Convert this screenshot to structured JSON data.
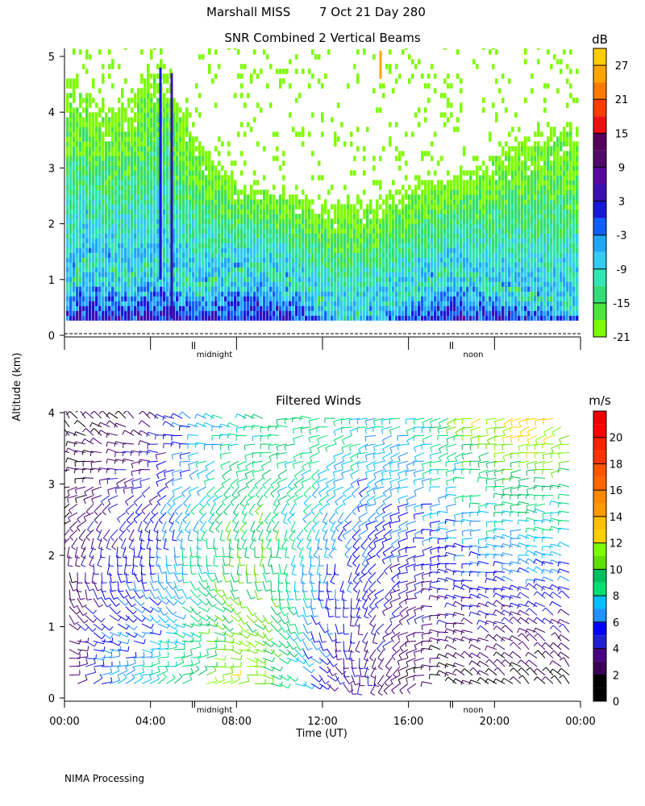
{
  "header": {
    "station": "Marshall MISS",
    "date": "7 Oct 21 Day 280"
  },
  "axes": {
    "ylabel": "Altitude (km)",
    "xlabel": "Time (UT)",
    "time_ticks": [
      "00:00",
      "04:00",
      "08:00",
      "12:00",
      "16:00",
      "20:00",
      "00:00"
    ],
    "midnight_label": "midnight",
    "noon_label": "noon"
  },
  "footer": {
    "processing": "NIMA Processing"
  },
  "chart_data": [
    {
      "type": "heatmap",
      "title": "SNR Combined 2 Vertical Beams",
      "xlabel": "Time (UT)",
      "ylabel": "Altitude (km)",
      "xlim": [
        0,
        24
      ],
      "ylim": [
        0,
        5.2
      ],
      "yticks": [
        0,
        1,
        2,
        3,
        4,
        5
      ],
      "colorbar": {
        "unit": "dB",
        "ticks": [
          -21,
          -15,
          -9,
          -3,
          3,
          9,
          15,
          21,
          27
        ],
        "levels": [
          -21,
          -18,
          -15,
          -12,
          -9,
          -6,
          -3,
          0,
          3,
          6,
          9,
          12,
          15,
          18,
          21,
          24,
          27,
          30
        ],
        "colors": [
          "#7cfc00",
          "#4be53d",
          "#33dd77",
          "#33e5b3",
          "#33ccf0",
          "#1fa7f5",
          "#1060f5",
          "#1818d8",
          "#3a10b0",
          "#5a0aa0",
          "#520a6a",
          "#55005a",
          "#ee1010",
          "#ff3c00",
          "#ff7a00",
          "#ffa500",
          "#ffcc00"
        ]
      },
      "profile": {
        "time_hours": [
          0.2,
          1,
          2,
          3,
          4,
          4.5,
          5,
          6,
          7,
          8,
          9,
          10,
          11,
          12,
          13,
          14,
          15,
          16,
          17,
          18,
          19,
          20,
          21,
          22,
          23,
          23.8
        ],
        "strong_top_km": [
          0.9,
          1.5,
          1.3,
          1.1,
          1.3,
          1.6,
          1.2,
          0.9,
          1.0,
          1.2,
          1.3,
          1.1,
          0.9,
          0.6,
          0.3,
          0.4,
          0.6,
          0.8,
          1.0,
          1.3,
          1.1,
          0.9,
          0.8,
          0.7,
          0.6,
          0.5
        ],
        "echo_top_km": [
          4.6,
          4.3,
          3.9,
          4.2,
          4.8,
          4.9,
          4.3,
          3.6,
          3.0,
          2.7,
          2.6,
          2.5,
          2.4,
          2.3,
          2.3,
          2.4,
          2.5,
          2.6,
          2.7,
          2.8,
          3.0,
          3.2,
          3.4,
          3.6,
          3.7,
          3.8
        ]
      }
    },
    {
      "type": "scatter",
      "title": "Filtered Winds",
      "xlabel": "Time (UT)",
      "ylabel": "Altitude (km)",
      "xlim": [
        0,
        24
      ],
      "ylim": [
        0,
        4
      ],
      "yticks": [
        0,
        1,
        2,
        3,
        4
      ],
      "colorbar": {
        "unit": "m/s",
        "ticks": [
          0,
          2,
          4,
          6,
          8,
          10,
          12,
          14,
          16,
          18,
          20
        ],
        "levels": [
          0,
          1,
          2,
          3,
          4,
          5,
          6,
          7,
          8,
          9,
          10,
          11,
          12,
          13,
          14,
          15,
          16,
          17,
          18,
          19,
          20,
          21,
          22
        ],
        "colors": [
          "#000000",
          "#000000",
          "#3a0058",
          "#4b0082",
          "#2020d0",
          "#0000ff",
          "#1e90ff",
          "#00bfff",
          "#00e070",
          "#00c060",
          "#60e000",
          "#7cfc00",
          "#ffd000",
          "#ffc000",
          "#ff9900",
          "#ff8800",
          "#ff6600",
          "#ff5500",
          "#ff3300",
          "#ff2200",
          "#ff0000",
          "#ee0000"
        ]
      },
      "speed_profile": {
        "time_hours": [
          0,
          2,
          4,
          6,
          8,
          10,
          12,
          14,
          16,
          18,
          20,
          22,
          24
        ],
        "low_level_ms": [
          3,
          7,
          8,
          10,
          12,
          9,
          4,
          3,
          2,
          1,
          1,
          1,
          1
        ],
        "upper_level_ms": [
          2,
          2,
          3,
          6,
          8,
          9,
          9,
          8,
          8,
          10,
          12,
          13,
          12
        ]
      },
      "direction_profile": {
        "time_hours": [
          0,
          6,
          12,
          18,
          24
        ],
        "low_level_deg": [
          60,
          45,
          120,
          300,
          330
        ],
        "upper_level_deg": [
          330,
          300,
          270,
          250,
          250
        ]
      }
    }
  ]
}
